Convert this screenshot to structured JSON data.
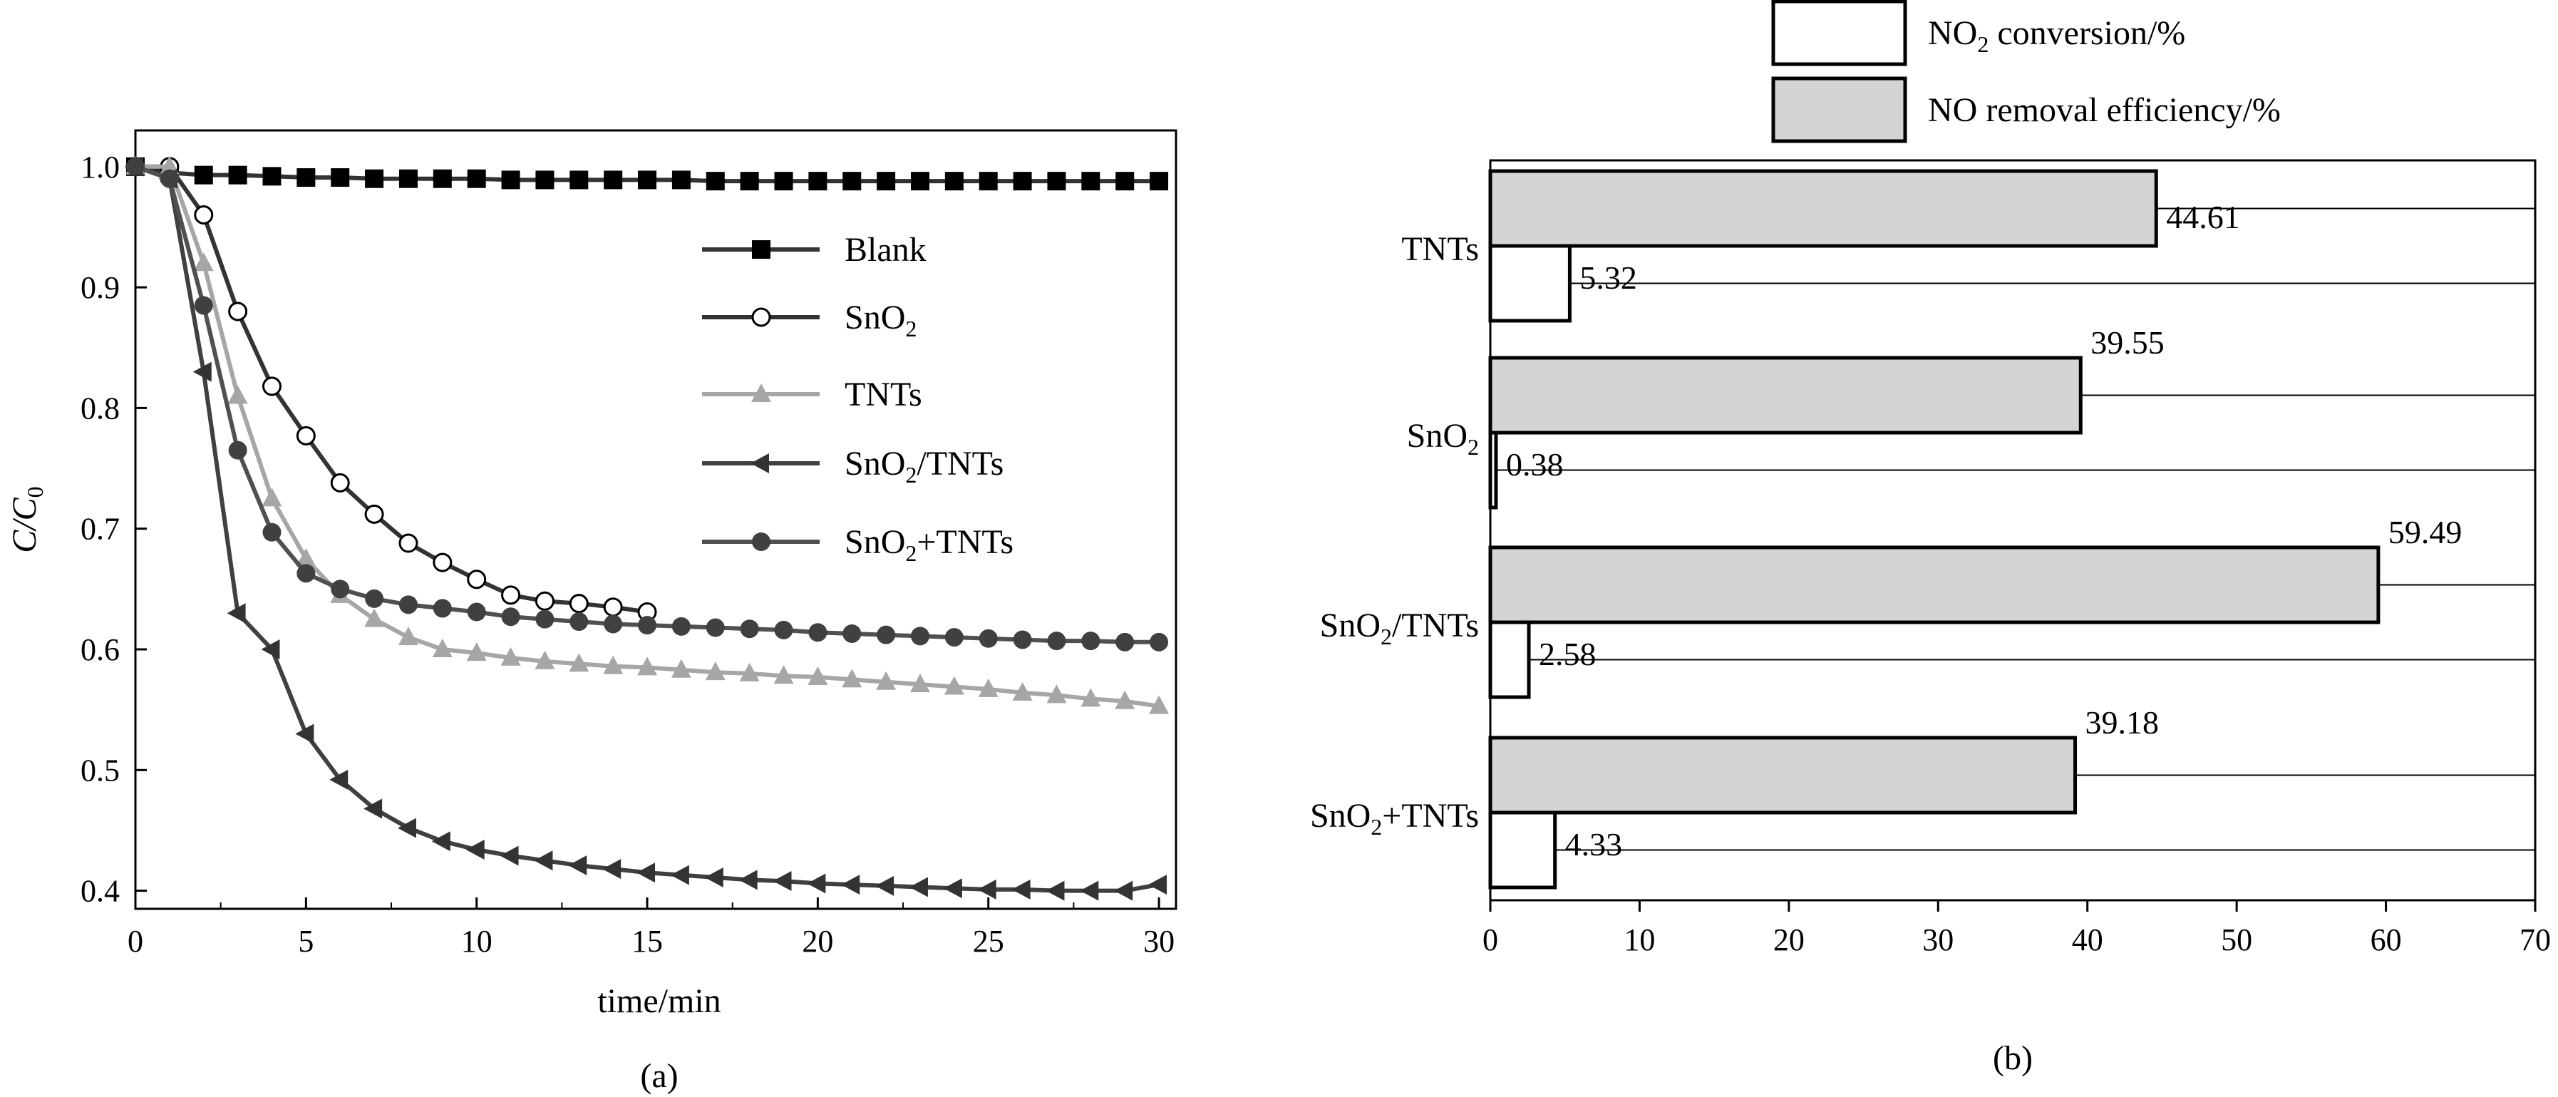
{
  "chart_data": [
    {
      "type": "line",
      "panel_label": "(a)",
      "xlabel": "time/min",
      "ylabel": {
        "main": "C/C",
        "sub": "0"
      },
      "xlim": [
        0,
        30.5
      ],
      "ylim": [
        0.385,
        1.03
      ],
      "xticks": [
        "0",
        "5",
        "10",
        "15",
        "20",
        "25",
        "30"
      ],
      "xtick_values": [
        0,
        5,
        10,
        15,
        20,
        25,
        30
      ],
      "yticks": [
        "0.4",
        "0.5",
        "0.6",
        "0.7",
        "0.8",
        "0.9",
        "1.0"
      ],
      "ytick_values": [
        0.4,
        0.5,
        0.6,
        0.7,
        0.8,
        0.9,
        1.0
      ],
      "series": [
        {
          "name": "Blank",
          "legend": {
            "main": "Blank"
          },
          "marker": "square",
          "line_color": "#333333",
          "marker_color": "#000000",
          "x": [
            0,
            1,
            2,
            3,
            4,
            5,
            6,
            7,
            8,
            9,
            10,
            11,
            12,
            13,
            14,
            15,
            16,
            17,
            18,
            19,
            20,
            21,
            22,
            23,
            24,
            25,
            26,
            27,
            28,
            29,
            30
          ],
          "y": [
            1.0,
            0.995,
            0.993,
            0.993,
            0.992,
            0.991,
            0.991,
            0.99,
            0.99,
            0.99,
            0.99,
            0.989,
            0.989,
            0.989,
            0.989,
            0.989,
            0.989,
            0.988,
            0.988,
            0.988,
            0.988,
            0.988,
            0.988,
            0.988,
            0.988,
            0.988,
            0.988,
            0.988,
            0.988,
            0.988,
            0.988
          ]
        },
        {
          "name": "SnO2",
          "legend": {
            "main": "SnO",
            "sub": "2"
          },
          "marker": "open-circle",
          "line_color": "#333333",
          "marker_color": "#000000",
          "x": [
            0,
            1,
            2,
            3,
            4,
            5,
            6,
            7,
            8,
            9,
            10,
            11,
            12,
            13,
            14,
            15
          ],
          "y": [
            1.0,
            1.0,
            0.96,
            0.88,
            0.818,
            0.777,
            0.738,
            0.712,
            0.688,
            0.672,
            0.658,
            0.645,
            0.64,
            0.638,
            0.635,
            0.631
          ]
        },
        {
          "name": "TNTs",
          "legend": {
            "main": "TNTs"
          },
          "marker": "triangle-up",
          "line_color": "#a6a6a6",
          "marker_color": "#a6a6a6",
          "x": [
            0,
            1,
            2,
            3,
            4,
            5,
            6,
            7,
            8,
            9,
            10,
            11,
            12,
            13,
            14,
            15,
            16,
            17,
            18,
            19,
            20,
            21,
            22,
            23,
            24,
            25,
            26,
            27,
            28,
            29,
            30
          ],
          "y": [
            1.0,
            1.0,
            0.92,
            0.81,
            0.725,
            0.675,
            0.645,
            0.625,
            0.61,
            0.6,
            0.597,
            0.593,
            0.59,
            0.588,
            0.586,
            0.585,
            0.583,
            0.581,
            0.58,
            0.578,
            0.577,
            0.575,
            0.573,
            0.571,
            0.569,
            0.567,
            0.564,
            0.562,
            0.559,
            0.557,
            0.553
          ]
        },
        {
          "name": "SnO2/TNTs",
          "legend": {
            "main": "SnO",
            "sub": "2",
            "rest": "/TNTs"
          },
          "marker": "triangle-left",
          "line_color": "#404040",
          "marker_color": "#333333",
          "x": [
            0,
            1,
            2,
            3,
            4,
            5,
            6,
            7,
            8,
            9,
            10,
            11,
            12,
            13,
            14,
            15,
            16,
            17,
            18,
            19,
            20,
            21,
            22,
            23,
            24,
            25,
            26,
            27,
            28,
            29,
            30
          ],
          "y": [
            1.0,
            0.99,
            0.83,
            0.63,
            0.6,
            0.53,
            0.492,
            0.468,
            0.452,
            0.441,
            0.434,
            0.429,
            0.425,
            0.421,
            0.418,
            0.415,
            0.413,
            0.411,
            0.409,
            0.408,
            0.406,
            0.405,
            0.404,
            0.403,
            0.402,
            0.401,
            0.401,
            0.4,
            0.4,
            0.4,
            0.405
          ]
        },
        {
          "name": "SnO2+TNTs",
          "legend": {
            "main": "SnO",
            "sub": "2",
            "rest": "+TNTs"
          },
          "marker": "filled-circle",
          "line_color": "#505050",
          "marker_color": "#404040",
          "x": [
            0,
            1,
            2,
            3,
            4,
            5,
            6,
            7,
            8,
            9,
            10,
            11,
            12,
            13,
            14,
            15,
            16,
            17,
            18,
            19,
            20,
            21,
            22,
            23,
            24,
            25,
            26,
            27,
            28,
            29,
            30
          ],
          "y": [
            1.0,
            0.99,
            0.885,
            0.765,
            0.697,
            0.663,
            0.65,
            0.642,
            0.637,
            0.634,
            0.631,
            0.627,
            0.625,
            0.623,
            0.621,
            0.62,
            0.619,
            0.618,
            0.617,
            0.616,
            0.614,
            0.613,
            0.612,
            0.611,
            0.61,
            0.609,
            0.608,
            0.607,
            0.607,
            0.606,
            0.606
          ]
        }
      ]
    },
    {
      "type": "bar",
      "orientation": "horizontal",
      "panel_label": "(b)",
      "xlim": [
        0,
        70
      ],
      "xticks": [
        "0",
        "10",
        "20",
        "30",
        "40",
        "50",
        "60",
        "70"
      ],
      "xtick_values": [
        0,
        10,
        20,
        30,
        40,
        50,
        60,
        70
      ],
      "categories": [
        {
          "main": "TNTs"
        },
        {
          "main": "SnO",
          "sub": "2"
        },
        {
          "main": "SnO",
          "sub": "2",
          "rest": "/TNTs"
        },
        {
          "main": "SnO",
          "sub": "2",
          "rest": "+TNTs"
        }
      ],
      "series": [
        {
          "name": "NO removal efficiency/%",
          "legend": {
            "main": "NO  removal efficiency/%"
          },
          "fill": "#d4d4d4",
          "values": [
            44.61,
            39.55,
            59.49,
            39.18
          ],
          "labels": [
            "44.61",
            "39.55",
            "59.49",
            "39.18"
          ]
        },
        {
          "name": "NO2 conversion/%",
          "legend": {
            "main": "NO",
            "sub": "2",
            "rest": "  conversion/%"
          },
          "fill": "#ffffff",
          "values": [
            5.32,
            0.38,
            2.58,
            4.33
          ],
          "labels": [
            "5.32",
            "0.38",
            "2.58",
            "4.33"
          ]
        }
      ]
    }
  ]
}
